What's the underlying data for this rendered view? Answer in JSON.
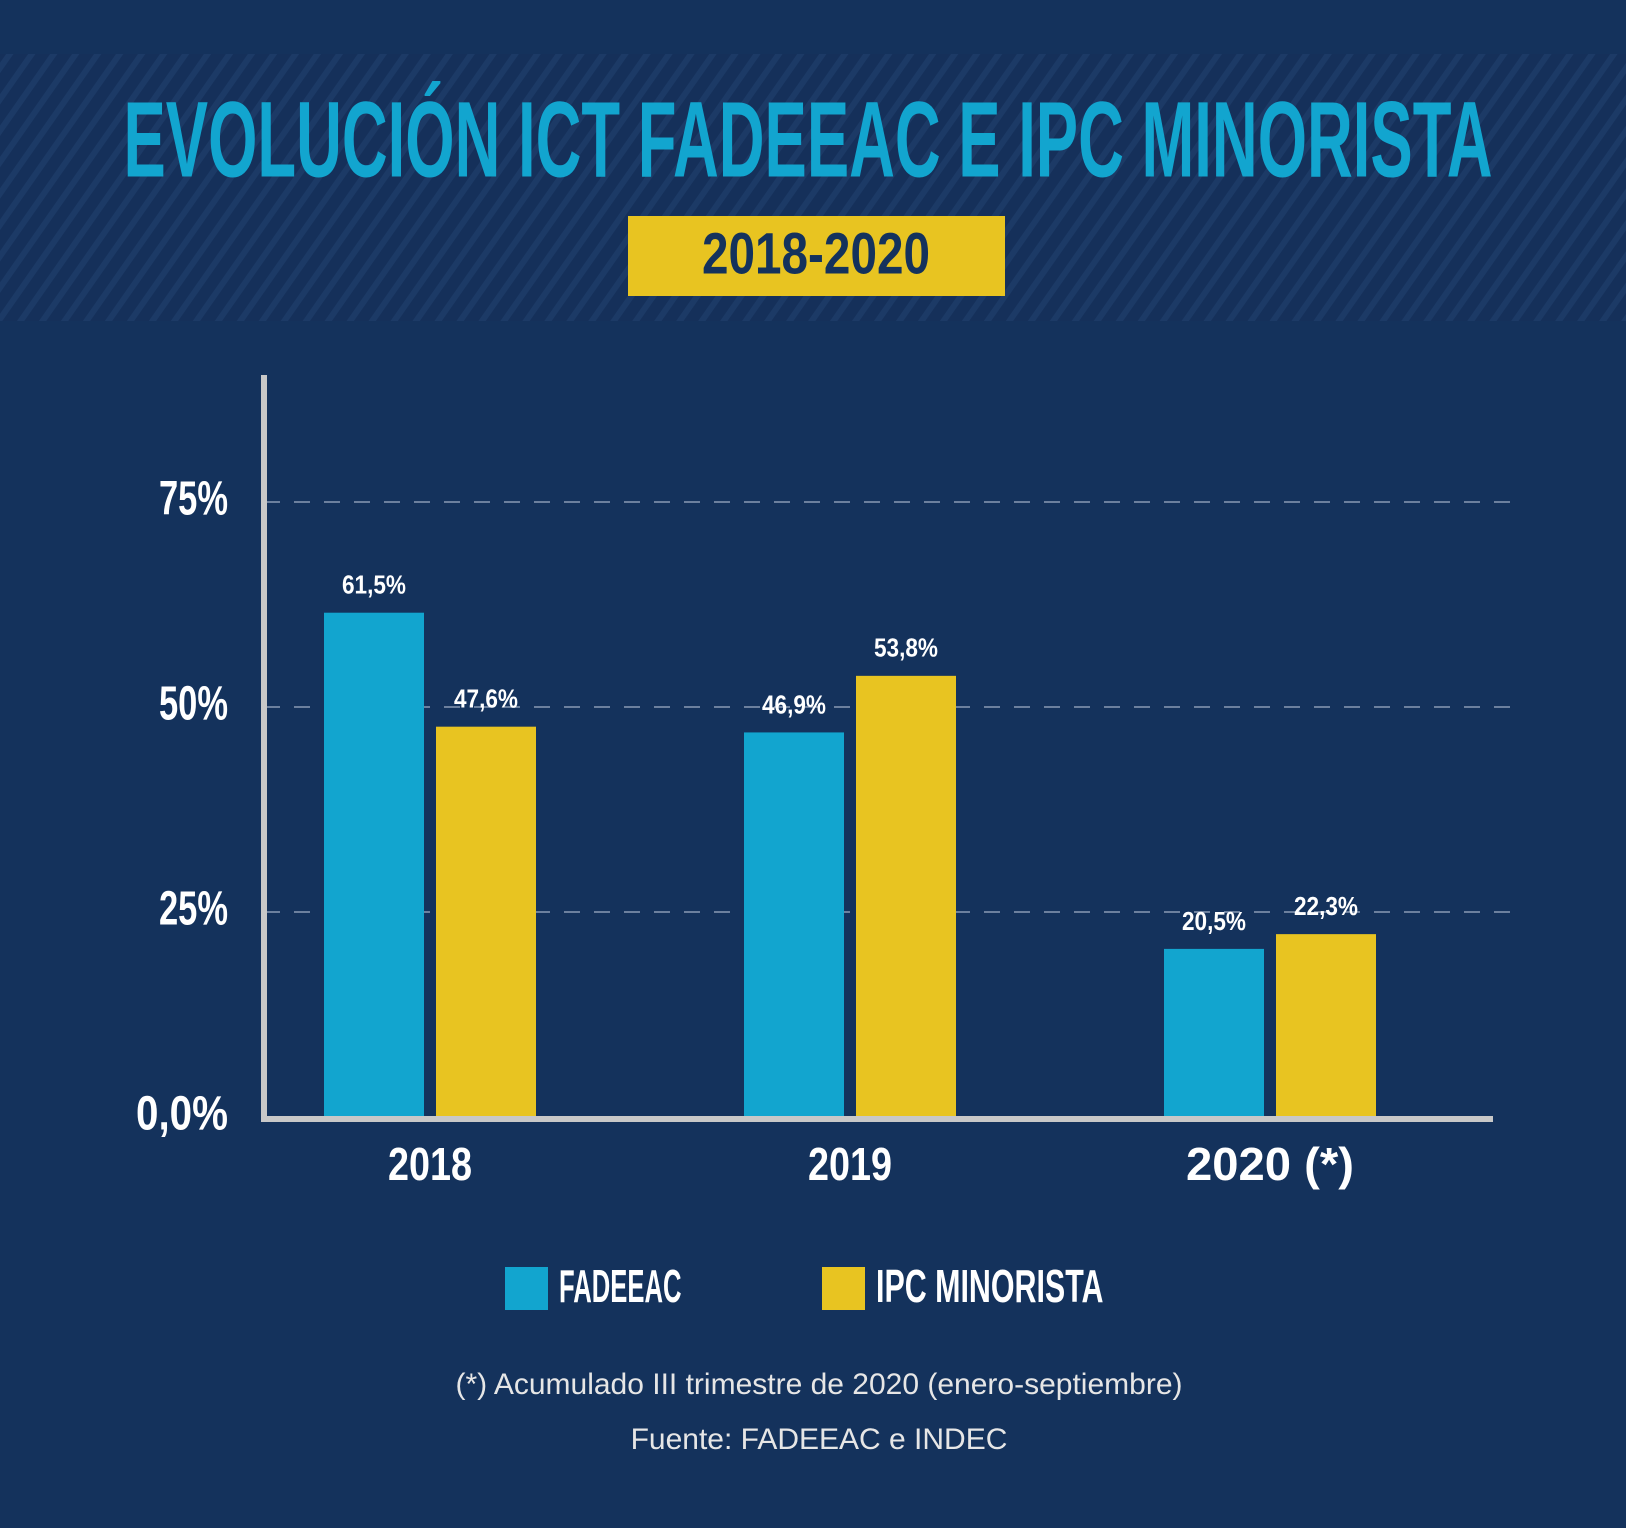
{
  "chart_data": {
    "type": "bar",
    "title": "EVOLUCIÓN ICT FADEEAC E IPC MINORISTA",
    "subtitle": "2018-2020",
    "categories": [
      "2018",
      "2019",
      "2020 (*)"
    ],
    "series": [
      {
        "name": "FADEEAC",
        "color": "#12a5cf",
        "values": [
          61.5,
          46.9,
          20.5
        ],
        "value_labels": [
          "61,5%",
          "46,9%",
          "20,5%"
        ]
      },
      {
        "name": "IPC MINORISTA",
        "color": "#e8c421",
        "values": [
          47.6,
          53.8,
          22.3
        ],
        "value_labels": [
          "47,6%",
          "53,8%",
          "22,3%"
        ]
      }
    ],
    "ylim": [
      0,
      90
    ],
    "yticks": [
      {
        "value": 0,
        "label": "0,0%"
      },
      {
        "value": 25,
        "label": "25%"
      },
      {
        "value": 50,
        "label": "50%"
      },
      {
        "value": 75,
        "label": "75%"
      }
    ],
    "grid": true,
    "annotations": [
      "(*) Acumulado III trimestre de 2020 (enero-septiembre)",
      "Fuente: FADEEAC e INDEC"
    ]
  }
}
